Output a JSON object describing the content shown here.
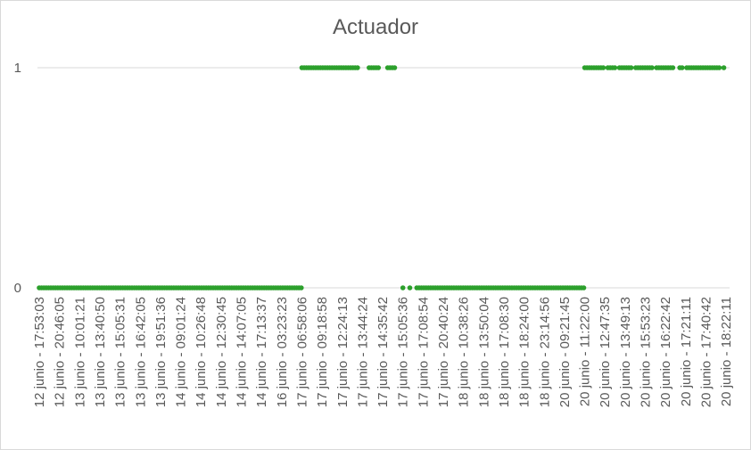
{
  "chart_data": {
    "type": "scatter",
    "title": "Actuador",
    "y_ticks": [
      0,
      1
    ],
    "ylim": [
      0,
      1
    ],
    "grid": true,
    "legend": "none",
    "series_color": "#2ca02c",
    "gridline_color": "#d9d9d9",
    "x_tick_labels": [
      "12 junio - 17:53:03",
      "12 junio - 20:46:05",
      "13 junio - 10:01:21",
      "13 junio - 13:40:50",
      "13 junio - 15:05:31",
      "13 junio - 16:42:05",
      "13 junio - 19:51:36",
      "14 junio - 09:01:24",
      "14 junio - 10:26:48",
      "14 junio - 12:30:45",
      "14 junio - 14:07:05",
      "14 junio - 17:13:37",
      "16 junio - 03:23:23",
      "17 junio - 06:58:06",
      "17 junio - 09:18:58",
      "17 junio - 12:24:13",
      "17 junio - 13:44:24",
      "17 junio - 14:35:42",
      "17 junio - 15:05:36",
      "17 junio - 17:08:54",
      "17 junio - 20:40:24",
      "18 junio - 10:38:26",
      "18 junio - 13:50:04",
      "18 junio - 17:08:30",
      "18 junio - 18:24:00",
      "18 junio - 23:14:56",
      "20 junio - 09:21:45",
      "20 junio - 11:22:00",
      "20 junio - 12:47:35",
      "20 junio - 13:49:13",
      "20 junio - 15:53:23",
      "20 junio - 16:22:42",
      "20 junio - 17:21:11",
      "20 junio - 17:40:42",
      "20 junio - 18:22:11"
    ],
    "series": [
      {
        "segments": [
          {
            "from_label": "12 junio - 17:53:03",
            "to_label": "17 junio - 06:58:06",
            "value": 0
          },
          {
            "from_label": "17 junio - 06:58:06",
            "to_label": "17 junio - 15:05:36",
            "value": 1
          },
          {
            "from_label": "17 junio - 15:05:36",
            "to_label": "20 junio - 11:22:00",
            "value": 0
          },
          {
            "from_label": "20 junio - 11:22:00",
            "to_label": "20 junio - 18:22:11",
            "value": 1
          }
        ]
      }
    ]
  }
}
